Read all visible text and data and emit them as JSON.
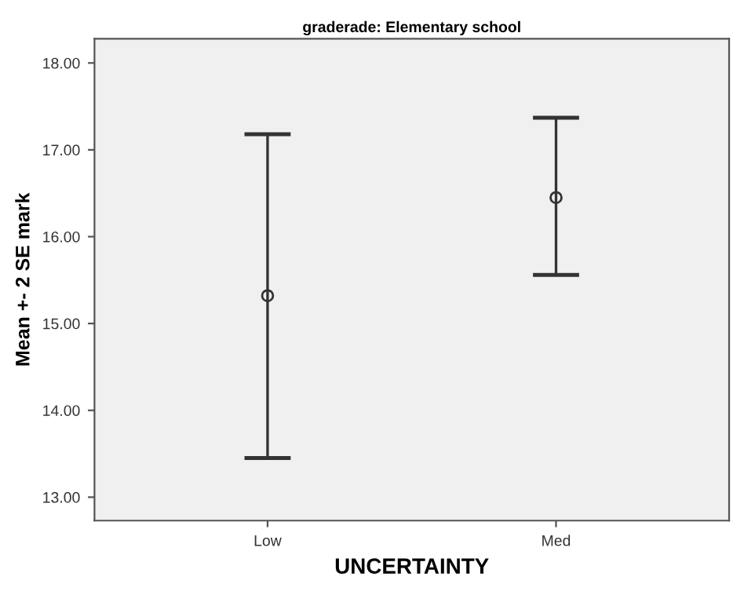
{
  "chart_data": {
    "type": "scatter",
    "title": "graderade: Elementary school",
    "xlabel": "UNCERTAINTY",
    "ylabel": "Mean +- 2 SE mark",
    "categories": [
      "Low",
      "Med"
    ],
    "series": [
      {
        "color": "#333333",
        "values": [
          15.32,
          16.45
        ],
        "errors": [
          [
            13.45,
            17.18
          ],
          [
            15.56,
            17.37
          ]
        ]
      }
    ],
    "marker": "circle",
    "ylim": [
      12.73,
      18.28
    ],
    "yticks": [
      {
        "value": 13,
        "label": "13.00"
      },
      {
        "value": 14,
        "label": "14.00"
      },
      {
        "value": 15,
        "label": "15.00"
      },
      {
        "value": 16,
        "label": "16.00"
      },
      {
        "value": 17,
        "label": "17.00"
      },
      {
        "value": 18,
        "label": "18.00"
      }
    ],
    "grid": false,
    "legend": false
  }
}
